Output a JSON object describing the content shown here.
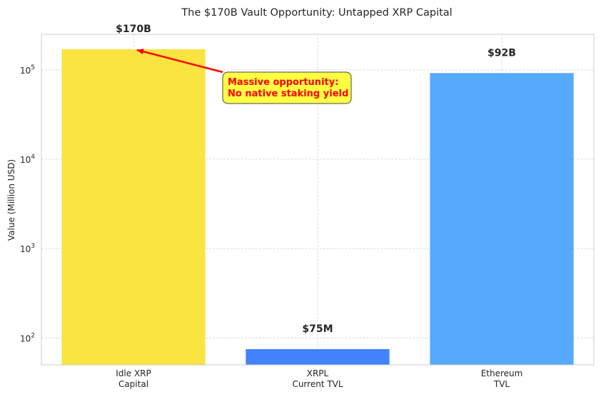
{
  "chart_data": {
    "type": "bar",
    "title": "The $170B Vault Opportunity: Untapped XRP Capital",
    "xlabel": "",
    "ylabel": "Value (Million USD)",
    "yscale": "log",
    "ylim": [
      50,
      250000
    ],
    "grid": true,
    "categories": [
      [
        "Idle XRP",
        "Capital"
      ],
      [
        "XRPL",
        "Current TVL"
      ],
      [
        "Ethereum",
        "TVL"
      ]
    ],
    "values": [
      170000,
      75,
      92000
    ],
    "data_labels": [
      "$170B",
      "$75M",
      "$92B"
    ],
    "colors": [
      "#f9e442",
      "#4282fc",
      "#57a9fb"
    ],
    "y_ticks": [
      {
        "value": 100,
        "base": "10",
        "exp": "2"
      },
      {
        "value": 1000,
        "base": "10",
        "exp": "3"
      },
      {
        "value": 10000,
        "base": "10",
        "exp": "4"
      },
      {
        "value": 100000,
        "base": "10",
        "exp": "5"
      }
    ],
    "annotation": {
      "lines": [
        "Massive opportunity:",
        "No native staking yield"
      ],
      "target_category_index": 0,
      "text_color": "#ff0000",
      "box_color": "#ffff44",
      "arrow_color": "#ff0000"
    }
  }
}
